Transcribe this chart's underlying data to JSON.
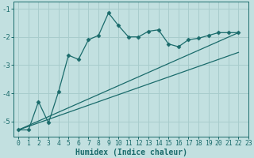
{
  "xlabel": "Humidex (Indice chaleur)",
  "bg_color": "#c2e0e0",
  "grid_color": "#a8cccc",
  "line_color": "#1a6b6b",
  "xlim": [
    -0.5,
    23
  ],
  "ylim": [
    -5.55,
    -0.75
  ],
  "yticks": [
    -5,
    -4,
    -3,
    -2,
    -1
  ],
  "xticks": [
    0,
    1,
    2,
    3,
    4,
    5,
    6,
    7,
    8,
    9,
    10,
    11,
    12,
    13,
    14,
    15,
    16,
    17,
    18,
    19,
    20,
    21,
    22,
    23
  ],
  "line1_x": [
    0,
    1,
    2,
    3,
    4,
    5,
    6,
    7,
    8,
    9,
    10,
    11,
    12,
    13,
    14,
    15,
    16,
    17,
    18,
    19,
    20,
    21,
    22
  ],
  "line1_y": [
    -5.3,
    -5.3,
    -4.3,
    -5.05,
    -3.95,
    -2.65,
    -2.8,
    -2.1,
    -1.95,
    -1.15,
    -1.6,
    -2.0,
    -2.0,
    -1.8,
    -1.75,
    -2.25,
    -2.35,
    -2.1,
    -2.05,
    -1.95,
    -1.85,
    -1.85,
    -1.85
  ],
  "line2_x": [
    0,
    22
  ],
  "line2_y": [
    -5.3,
    -1.85
  ],
  "line3_x": [
    0,
    22
  ],
  "line3_y": [
    -5.3,
    -2.55
  ]
}
